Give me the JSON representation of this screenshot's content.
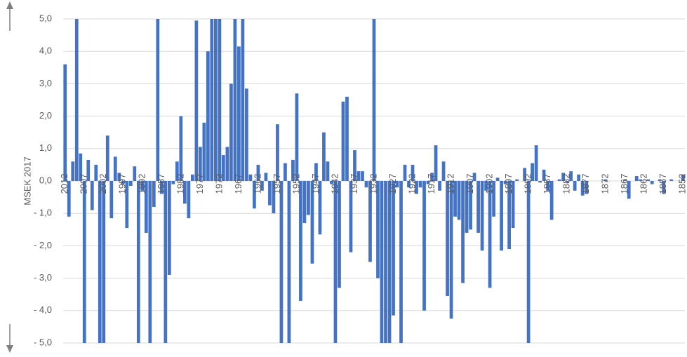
{
  "chart_data": {
    "type": "bar",
    "y_label": "MSEK 2017",
    "color": "#4472c4",
    "grid": true,
    "ylim": [
      -5,
      5
    ],
    "yticks": [
      {
        "value": 5,
        "label": "5,0"
      },
      {
        "value": 4,
        "label": "4,0"
      },
      {
        "value": 3,
        "label": "3,0"
      },
      {
        "value": 2,
        "label": "2,0"
      },
      {
        "value": 1,
        "label": "1,0"
      },
      {
        "value": 0,
        "label": "0,0"
      },
      {
        "value": -1,
        "label": "- 1,0"
      },
      {
        "value": -2,
        "label": "- 2,0"
      },
      {
        "value": -3,
        "label": "- 3,0"
      },
      {
        "value": -4,
        "label": "- 4,0"
      },
      {
        "value": -5,
        "label": "- 5,0"
      }
    ],
    "categories": [
      "2012",
      null,
      null,
      null,
      null,
      "2007",
      null,
      null,
      null,
      null,
      "2002",
      null,
      null,
      null,
      null,
      "1997",
      null,
      null,
      null,
      null,
      "1992",
      null,
      null,
      null,
      null,
      "1987",
      null,
      null,
      null,
      null,
      "1982",
      null,
      null,
      null,
      null,
      "1977",
      null,
      null,
      null,
      null,
      "1972",
      null,
      null,
      null,
      null,
      "1967",
      null,
      null,
      null,
      null,
      "1962",
      null,
      null,
      null,
      null,
      "1957",
      null,
      null,
      null,
      null,
      "1952",
      null,
      null,
      null,
      null,
      "1947",
      null,
      null,
      null,
      null,
      "1942",
      null,
      null,
      null,
      null,
      "1937",
      null,
      null,
      null,
      null,
      "1932",
      null,
      null,
      null,
      null,
      "1927",
      null,
      null,
      null,
      null,
      "1922",
      null,
      null,
      null,
      null,
      "1917",
      null,
      null,
      null,
      null,
      "1912",
      null,
      null,
      null,
      null,
      "1907",
      null,
      null,
      null,
      null,
      "1902",
      null,
      null,
      null,
      null,
      "1897",
      null,
      null,
      null,
      null,
      "1892",
      null,
      null,
      null,
      null,
      "1887",
      null,
      null,
      null,
      null,
      "1882",
      null,
      null,
      null,
      null,
      "1877",
      null,
      null,
      null,
      null,
      "1872",
      null,
      null,
      null,
      null,
      "1867",
      null,
      null,
      null,
      null,
      "1862",
      null,
      null,
      null,
      null,
      "1857",
      null,
      null,
      null,
      null,
      "1852"
    ],
    "values": [
      3.6,
      -1.1,
      0.6,
      5,
      0.85,
      -5,
      0.65,
      -0.9,
      0.5,
      -5,
      -5,
      1.4,
      -1.15,
      0.75,
      0.25,
      -0.1,
      -1.45,
      -0.15,
      0.45,
      -5,
      -0.3,
      -1.6,
      -5,
      -0.8,
      5,
      -0.4,
      -5,
      -2.9,
      -0.1,
      0.6,
      2.0,
      -0.7,
      -1.15,
      0.2,
      4.95,
      1.05,
      1.8,
      4.0,
      5,
      5,
      5,
      0.8,
      1.05,
      3.0,
      5,
      4.15,
      5,
      2.85,
      0.2,
      -0.85,
      0.5,
      -0.3,
      0.25,
      -0.75,
      -1.0,
      1.75,
      -5,
      0.55,
      -5,
      0.65,
      2.7,
      -3.7,
      -1.3,
      -1.05,
      -2.55,
      0.55,
      -1.65,
      1.5,
      0.6,
      -0.1,
      -5,
      -3.3,
      2.45,
      2.6,
      -2.2,
      0.95,
      0.3,
      0.3,
      -0.2,
      -2.5,
      5,
      -3.0,
      -5,
      -5,
      -5,
      -4.15,
      -0.2,
      -5,
      0.5,
      -0.2,
      0.5,
      -0.4,
      -0.2,
      -4.0,
      -0.1,
      0.25,
      1.1,
      -0.3,
      0.6,
      -3.55,
      -4.25,
      -1.1,
      -1.2,
      -3.15,
      -1.6,
      -1.5,
      0.25,
      -1.6,
      -2.15,
      -0.3,
      -3.3,
      -1.1,
      0.1,
      -2.15,
      -0.1,
      -2.1,
      -1.45,
      0.05,
      0,
      0.4,
      -5,
      0.55,
      1.1,
      -0.05,
      0.35,
      -0.3,
      -1.2,
      0,
      0.05,
      0.25,
      -0.05,
      0.3,
      -0.3,
      0.2,
      -0.45,
      -0.4,
      0,
      0,
      0,
      0,
      0.05,
      0,
      0,
      0,
      0,
      0.05,
      -0.55,
      0,
      0.15,
      0.05,
      0,
      0.05,
      -0.1,
      0,
      0.05,
      -0.4,
      0,
      0.05,
      0,
      0,
      0.2
    ]
  }
}
